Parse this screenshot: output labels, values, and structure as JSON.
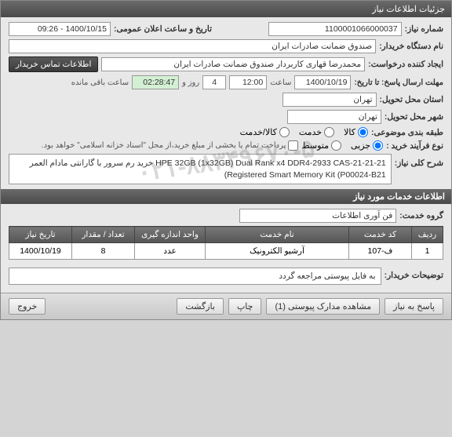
{
  "window": {
    "title": "جزئیات اطلاعات نیاز"
  },
  "header": {
    "req_number_label": "شماره نیاز:",
    "req_number": "1100001066000037",
    "public_datetime_label": "تاریخ و ساعت اعلان عمومی:",
    "public_datetime": "1400/10/15 - 09:26",
    "buyer_label": "نام دستگاه خریدار:",
    "buyer": "صندوق ضمانت صادرات ایران",
    "creator_label": "ایجاد کننده درخواست:",
    "creator": "محمدرضا قهاری کاربردار صندوق ضمانت صادرات ایران",
    "contact_btn": "اطلاعات تماس خریدار",
    "deadline_label": "مهلت ارسال پاسخ: تا تاریخ:",
    "deadline_date": "1400/10/19",
    "time_label": "ساعت",
    "deadline_time": "12:00",
    "days": "4",
    "days_label": "روز و",
    "remaining_time": "02:28:47",
    "remaining_label": "ساعت باقی مانده",
    "delivery_province_label": "استان محل تحویل:",
    "delivery_province": "تهران",
    "delivery_city_label": "شهر محل تحویل:",
    "delivery_city": "تهران",
    "subject_type_label": "طبقه بندی موضوعی:",
    "subject_kala": "کالا",
    "subject_service": "خدمت",
    "subject_both": "کالا/خدمت",
    "process_label": "نوع فرآیند خرید :",
    "process_partial": "جزیی",
    "process_medium": "متوسط",
    "process_note": "پرداخت تمام یا بخشی از مبلغ خرید،از محل \"اسناد خزانه اسلامی\" خواهد بود.",
    "title_label": "شرح کلی نیاز:",
    "title_text": "خرید رم سرور با گارانتی مادام العمر HPE 32GB (1x32GB) Dual Rank x4 DDR4-2933 CAS-21-21-21 (Registered Smart Memory Kit (P00024-B21"
  },
  "services_section": {
    "header": "اطلاعات خدمات مورد نیاز",
    "group_label": "گروه خدمت:",
    "group_value": "فن آوری اطلاعات",
    "columns": {
      "row": "ردیف",
      "code": "کد خدمت",
      "name": "نام خدمت",
      "unit": "واحد اندازه گیری",
      "qty": "تعداد / مقدار",
      "date": "تاریخ نیاز"
    },
    "rows": [
      {
        "row": "1",
        "code": "ف-107",
        "name": "آرشیو الکترونیک",
        "unit": "عدد",
        "qty": "8",
        "date": "1400/10/19"
      }
    ]
  },
  "buyer_notes": {
    "label": "توضیحات خریدار:",
    "text": "به فایل پیوستی مراجعه گردد"
  },
  "footer": {
    "respond": "پاسخ به نیاز",
    "attachments": "مشاهده مدارک پیوستی (1)",
    "print": "چاپ",
    "back": "بازگشت",
    "exit": "خروج"
  },
  "watermark": "۰۲۱-۸۸۳۴۹۶۷۰-۵"
}
